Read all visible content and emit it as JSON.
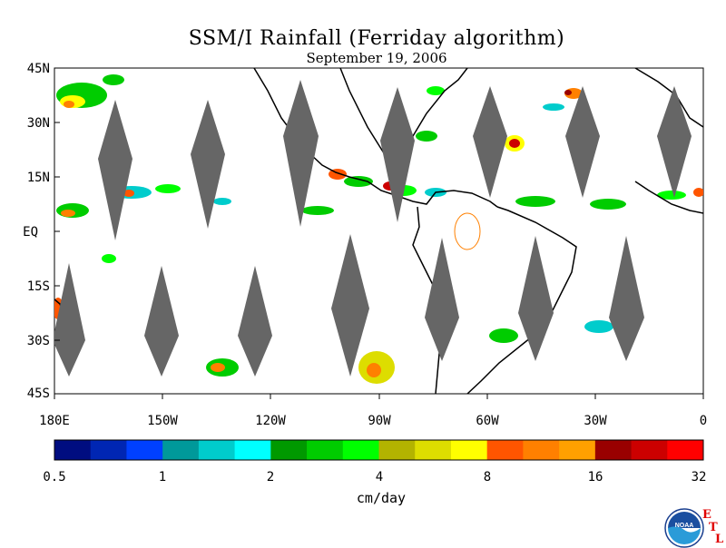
{
  "title": "SSM/I Rainfall (Ferriday algorithm)",
  "subtitle": "September 19, 2006",
  "latitude_labels": [
    "45N",
    "30N",
    "15N",
    "EQ",
    "15S",
    "30S",
    "45S"
  ],
  "longitude_labels": [
    "180E",
    "150W",
    "120W",
    "90W",
    "60W",
    "30W",
    "0"
  ],
  "colorbar": {
    "tick_labels": [
      "0.5",
      "1",
      "2",
      "4",
      "8",
      "16",
      "32"
    ],
    "unit": "cm/day",
    "colors": [
      "#000d80",
      "#0026b3",
      "#0040ff",
      "#00999a",
      "#00cccc",
      "#00ffff",
      "#009900",
      "#00cc00",
      "#00ff00",
      "#b3b300",
      "#dddd00",
      "#ffff00",
      "#ff5500",
      "#ff8000",
      "#ffa000",
      "#990000",
      "#cc0000",
      "#ff0000"
    ]
  },
  "logo": {
    "name": "NOAA",
    "letters": [
      "E",
      "T",
      "L"
    ]
  },
  "colors": {
    "no_data": "#666666",
    "coastline": "#000000"
  }
}
